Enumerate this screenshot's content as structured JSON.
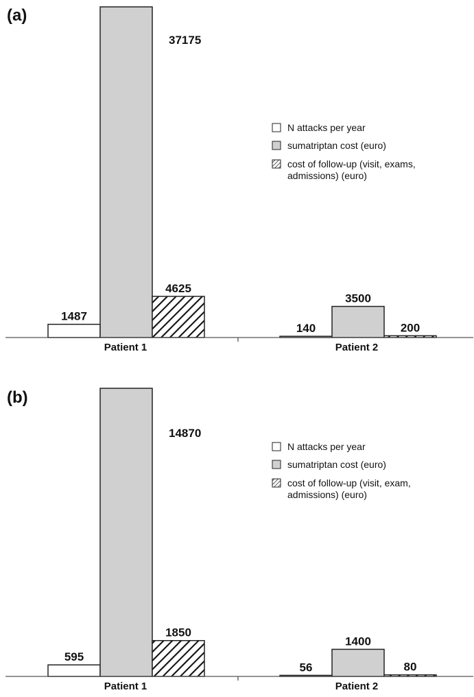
{
  "colors": {
    "attacks_fill": "#ffffff",
    "sumatriptan_fill": "#d0d0d0",
    "followup_pattern": "diagonal-hatch-black",
    "stroke": "#222222"
  },
  "chart_data": [
    {
      "type": "bar",
      "panel": "(a)",
      "categories": [
        "Patient 1",
        "Patient 2"
      ],
      "series": [
        {
          "name": "N attacks per year",
          "values": [
            1487,
            140
          ]
        },
        {
          "name": "sumatriptan cost (euro)",
          "values": [
            37175,
            3500
          ]
        },
        {
          "name": "cost of follow-up (visit, exams, admissions) (euro)",
          "values": [
            4625,
            200
          ]
        }
      ],
      "data_labels": [
        [
          "1487",
          "140"
        ],
        [
          "37175",
          "3500"
        ],
        [
          "4625",
          "200"
        ]
      ],
      "legend": {
        "placement": "right",
        "lines": [
          [
            "N attacks per year"
          ],
          [
            "sumatriptan cost (euro)"
          ],
          [
            "cost of follow-up (visit, exams,",
            "admissions) (euro)"
          ]
        ]
      },
      "ylim": [
        0,
        37175
      ]
    },
    {
      "type": "bar",
      "panel": "(b)",
      "categories": [
        "Patient 1",
        "Patient 2"
      ],
      "series": [
        {
          "name": "N attacks per year",
          "values": [
            595,
            56
          ]
        },
        {
          "name": "sumatriptan cost (euro)",
          "values": [
            14870,
            1400
          ]
        },
        {
          "name": "cost of follow-up (visit, exam, admissions) (euro)",
          "values": [
            1850,
            80
          ]
        }
      ],
      "data_labels": [
        [
          "595",
          "56"
        ],
        [
          "14870",
          "1400"
        ],
        [
          "1850",
          "80"
        ]
      ],
      "legend": {
        "placement": "right",
        "lines": [
          [
            "N attacks per year"
          ],
          [
            "sumatriptan cost (euro)"
          ],
          [
            "cost of follow-up (visit, exam,",
            "admissions) (euro)"
          ]
        ]
      },
      "ylim": [
        0,
        14870
      ]
    }
  ]
}
